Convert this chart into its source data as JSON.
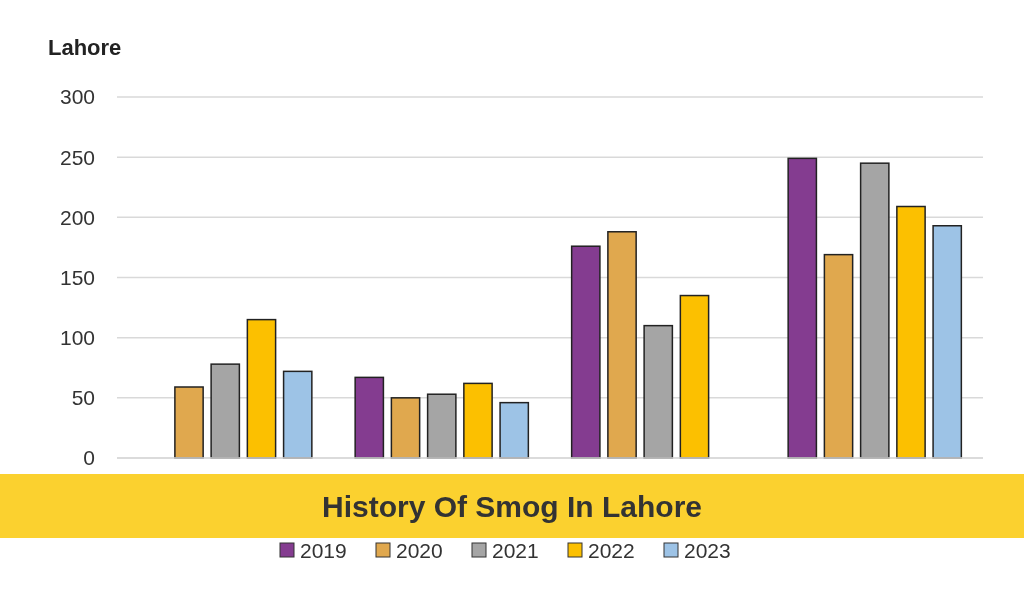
{
  "chart_data": {
    "type": "bar",
    "title": "Lahore",
    "subtitle": "History Of Smog In Lahore",
    "categories": [
      null,
      null,
      null,
      null
    ],
    "series": [
      {
        "name": "2019",
        "color": "#843c90",
        "values": [
          null,
          67,
          176,
          249
        ]
      },
      {
        "name": "2020",
        "color": "#e0a84e",
        "values": [
          59,
          50,
          188,
          169
        ]
      },
      {
        "name": "2021",
        "color": "#a5a5a5",
        "values": [
          78,
          53,
          110,
          245
        ]
      },
      {
        "name": "2022",
        "color": "#fcc000",
        "values": [
          115,
          62,
          135,
          209
        ]
      },
      {
        "name": "2023",
        "color": "#9dc3e6",
        "values": [
          72,
          46,
          null,
          193
        ]
      }
    ],
    "ylim": [
      0,
      300
    ],
    "yticks": [
      0,
      50,
      100,
      150,
      200,
      250,
      300
    ],
    "grid": "y",
    "legend": "bottom"
  }
}
